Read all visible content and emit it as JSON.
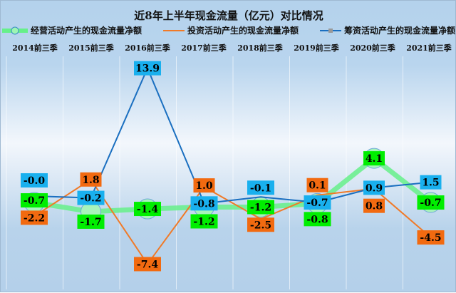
{
  "chart_data": {
    "type": "line",
    "title": "近8年上半年现金流量（亿元）对比情况",
    "categories": [
      "2014前三季",
      "2015前三季",
      "2016前三季",
      "2017前三季",
      "2018前三季",
      "2019前三季",
      "2020前三季",
      "2021前三季"
    ],
    "series": [
      {
        "name": "经营活动产生的现金流量净额",
        "color": "#66f08a",
        "label_color": "#00ee00",
        "values": [
          -0.7,
          -1.7,
          -1.4,
          -1.2,
          -1.2,
          -0.8,
          4.1,
          -0.7
        ]
      },
      {
        "name": "投资活动产生的现金流量净额",
        "color": "#f07a28",
        "label_color": "#f26a10",
        "values": [
          -2.2,
          1.8,
          -7.4,
          1.0,
          -2.5,
          0.1,
          0.8,
          -4.5
        ]
      },
      {
        "name": "筹资活动产生的现金流量净额",
        "color": "#1a6fc0",
        "label_color": "#19b0ee",
        "values": [
          -0.0,
          -0.2,
          13.9,
          -0.8,
          -0.1,
          -0.7,
          0.9,
          1.5
        ]
      }
    ],
    "ylim": [
      -8,
      14
    ],
    "grid": true,
    "legend": "top"
  }
}
